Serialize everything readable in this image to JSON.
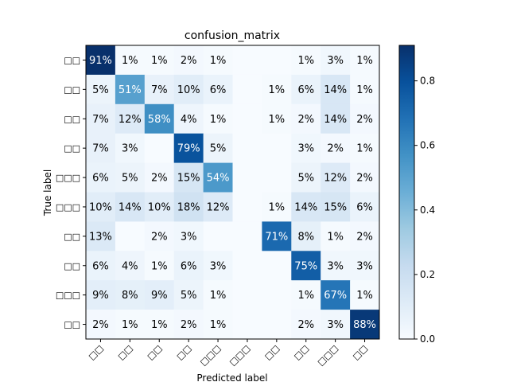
{
  "chart_data": {
    "type": "heatmap",
    "title": "confusion_matrix",
    "xlabel": "Predicted label",
    "ylabel": "True label",
    "row_labels": [
      "□□",
      "□□",
      "□□",
      "□□",
      "□□□",
      "□□□",
      "□□",
      "□□",
      "□□□",
      "□□"
    ],
    "col_labels": [
      "□□",
      "□□",
      "□□",
      "□□",
      "□□□",
      "□□□",
      "□□",
      "□□",
      "□□□",
      "□□"
    ],
    "values": [
      [
        0.91,
        0.01,
        0.01,
        0.02,
        0.01,
        0,
        0,
        0.01,
        0.03,
        0.01
      ],
      [
        0.05,
        0.51,
        0.07,
        0.1,
        0.06,
        0,
        0.01,
        0.06,
        0.14,
        0.01
      ],
      [
        0.07,
        0.12,
        0.58,
        0.04,
        0.01,
        0,
        0.01,
        0.02,
        0.14,
        0.02
      ],
      [
        0.07,
        0.03,
        0,
        0.79,
        0.05,
        0,
        0,
        0.03,
        0.02,
        0.01
      ],
      [
        0.06,
        0.05,
        0.02,
        0.15,
        0.54,
        0,
        0,
        0.05,
        0.12,
        0.02
      ],
      [
        0.1,
        0.14,
        0.1,
        0.18,
        0.12,
        0,
        0.01,
        0.14,
        0.15,
        0.06
      ],
      [
        0.13,
        0,
        0.02,
        0.03,
        0,
        0,
        0.71,
        0.08,
        0.01,
        0.02
      ],
      [
        0.06,
        0.04,
        0.01,
        0.06,
        0.03,
        0,
        0,
        0.75,
        0.03,
        0.03
      ],
      [
        0.09,
        0.08,
        0.09,
        0.05,
        0.01,
        0,
        0,
        0.01,
        0.67,
        0.01
      ],
      [
        0.02,
        0.01,
        0.01,
        0.02,
        0.01,
        0,
        0,
        0.02,
        0.03,
        0.88
      ]
    ],
    "cell_labels": [
      [
        "91%",
        "1%",
        "1%",
        "2%",
        "1%",
        "",
        "",
        "1%",
        "3%",
        "1%"
      ],
      [
        "5%",
        "51%",
        "7%",
        "10%",
        "6%",
        "",
        "1%",
        "6%",
        "14%",
        "1%"
      ],
      [
        "7%",
        "12%",
        "58%",
        "4%",
        "1%",
        "",
        "1%",
        "2%",
        "14%",
        "2%"
      ],
      [
        "7%",
        "3%",
        "",
        "79%",
        "5%",
        "",
        "",
        "3%",
        "2%",
        "1%"
      ],
      [
        "6%",
        "5%",
        "2%",
        "15%",
        "54%",
        "",
        "",
        "5%",
        "12%",
        "2%"
      ],
      [
        "10%",
        "14%",
        "10%",
        "18%",
        "12%",
        "",
        "1%",
        "14%",
        "15%",
        "6%"
      ],
      [
        "13%",
        "",
        "2%",
        "3%",
        "",
        "",
        "71%",
        "8%",
        "1%",
        "2%"
      ],
      [
        "6%",
        "4%",
        "1%",
        "6%",
        "3%",
        "",
        "",
        "75%",
        "3%",
        "3%"
      ],
      [
        "9%",
        "8%",
        "9%",
        "5%",
        "1%",
        "",
        "",
        "1%",
        "67%",
        "1%"
      ],
      [
        "2%",
        "1%",
        "1%",
        "2%",
        "1%",
        "",
        "",
        "2%",
        "3%",
        "88%"
      ]
    ],
    "colorbar": {
      "range": [
        0,
        0.91
      ],
      "ticks": [
        0.0,
        0.2,
        0.4,
        0.6,
        0.8
      ],
      "tick_labels": [
        "0.0",
        "0.2",
        "0.4",
        "0.6",
        "0.8"
      ]
    },
    "colormap": "Blues",
    "grid": false
  }
}
